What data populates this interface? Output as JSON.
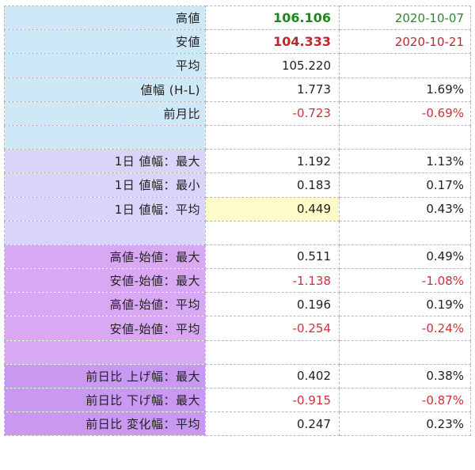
{
  "colors": {
    "high": "#1a8a1a",
    "low": "#c0272d",
    "negative": "#d0303a",
    "group1_bg": "#cfe8f8",
    "group2_bg": "#d9d4fa",
    "group3_bg": "#d9a8f2",
    "group4_bg": "#c998f0",
    "highlight_bg": "#fdfcc8"
  },
  "rows": [
    {
      "label": "高値",
      "value": "106.106",
      "extra": "2020-10-07"
    },
    {
      "label": "安値",
      "value": "104.333",
      "extra": "2020-10-21"
    },
    {
      "label": "平均",
      "value": "105.220",
      "extra": ""
    },
    {
      "label": "値幅 (H-L)",
      "value": "1.773",
      "extra": "1.69%"
    },
    {
      "label": "前月比",
      "value": "-0.723",
      "extra": "-0.69%"
    },
    {
      "label": "",
      "value": "",
      "extra": ""
    },
    {
      "label": "1日 値幅：最大",
      "value": "1.192",
      "extra": "1.13%"
    },
    {
      "label": "1日 値幅：最小",
      "value": "0.183",
      "extra": "0.17%"
    },
    {
      "label": "1日 値幅：平均",
      "value": "0.449",
      "extra": "0.43%"
    },
    {
      "label": "",
      "value": "",
      "extra": ""
    },
    {
      "label": "高値-始値：最大",
      "value": "0.511",
      "extra": "0.49%"
    },
    {
      "label": "安値-始値：最大",
      "value": "-1.138",
      "extra": "-1.08%"
    },
    {
      "label": "高値-始値：平均",
      "value": "0.196",
      "extra": "0.19%"
    },
    {
      "label": "安値-始値：平均",
      "value": "-0.254",
      "extra": "-0.24%"
    },
    {
      "label": "",
      "value": "",
      "extra": ""
    },
    {
      "label": "前日比 上げ幅：最大",
      "value": "0.402",
      "extra": "0.38%"
    },
    {
      "label": "前日比 下げ幅：最大",
      "value": "-0.915",
      "extra": "-0.87%"
    },
    {
      "label": "前日比 変化幅：平均",
      "value": "0.247",
      "extra": "0.23%"
    }
  ]
}
